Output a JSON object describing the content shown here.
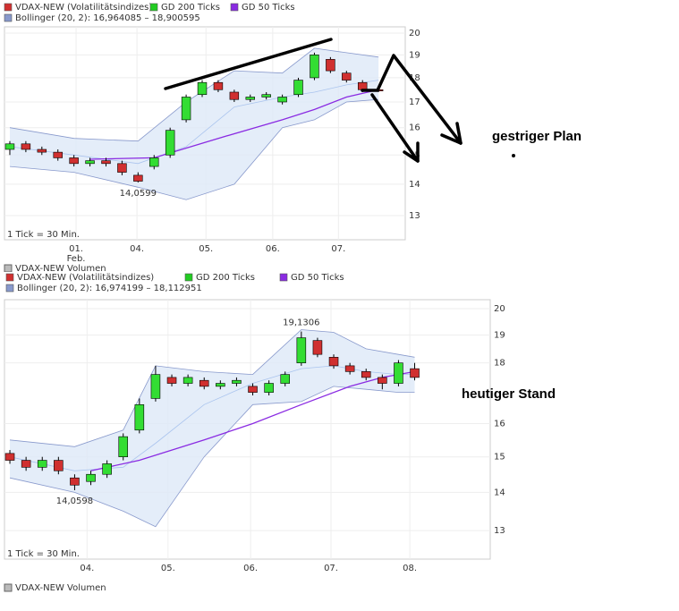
{
  "chart_data": [
    {
      "type": "candlestick",
      "log_scale": true,
      "grid": true,
      "ylim": [
        12.28,
        20.3
      ],
      "yticks": [
        20,
        19,
        18,
        17,
        16,
        15,
        14,
        13
      ],
      "xlim": [
        0,
        75
      ],
      "xticks": [
        {
          "value": 13.4,
          "label": "01."
        },
        {
          "value": 24.8,
          "label": "04."
        },
        {
          "value": 37.7,
          "label": "05."
        },
        {
          "value": 50.2,
          "label": "06."
        },
        {
          "value": 62.5,
          "label": "07."
        }
      ],
      "month_label": "Feb.",
      "scale_note": "1 Tick = 30 Min.",
      "footer": "VDAX-NEW Volumen",
      "min_label": "14,0599",
      "series": [
        {
          "name": "VDAX-NEW (Volatilitätsindizes)",
          "color": "#d03030",
          "up_color": "#33dd33",
          "x": [
            1,
            4,
            7,
            10,
            13,
            16,
            19,
            22,
            25,
            28,
            31,
            34,
            37,
            40,
            43,
            46,
            49,
            52,
            55,
            58,
            61,
            64,
            67,
            70
          ],
          "open": [
            15.2,
            15.4,
            15.2,
            15.1,
            14.9,
            14.7,
            14.8,
            14.7,
            14.3,
            14.6,
            15.0,
            16.3,
            17.3,
            17.8,
            17.4,
            17.1,
            17.2,
            17.0,
            17.3,
            18.0,
            18.8,
            18.2,
            17.8,
            17.5
          ],
          "high": [
            15.5,
            15.5,
            15.3,
            15.2,
            15.0,
            14.9,
            14.9,
            14.8,
            14.4,
            15.0,
            16.0,
            17.3,
            17.9,
            17.9,
            17.5,
            17.3,
            17.4,
            17.3,
            18.0,
            19.1,
            18.9,
            18.3,
            17.9,
            17.6
          ],
          "low": [
            15.0,
            15.1,
            15.0,
            14.8,
            14.6,
            14.6,
            14.6,
            14.3,
            14.06,
            14.5,
            14.9,
            16.2,
            17.2,
            17.4,
            17.0,
            17.0,
            17.1,
            16.9,
            17.2,
            17.9,
            18.2,
            17.8,
            17.4,
            17.4
          ],
          "close": [
            15.4,
            15.2,
            15.1,
            14.9,
            14.7,
            14.8,
            14.7,
            14.4,
            14.1,
            14.9,
            15.9,
            17.2,
            17.8,
            17.5,
            17.1,
            17.2,
            17.3,
            17.2,
            17.9,
            19.0,
            18.3,
            17.9,
            17.5,
            17.45
          ]
        },
        {
          "name": "GD 200 Ticks",
          "color": "#22cc22"
        },
        {
          "name": "GD 50 Ticks",
          "color": "#8a2be2",
          "x": [
            16,
            28,
            40,
            52,
            58,
            64,
            70
          ],
          "values": [
            14.85,
            14.9,
            15.6,
            16.3,
            16.7,
            17.2,
            17.5
          ]
        },
        {
          "name": "Bollinger (20, 2): 16,964085 – 18,900595",
          "color": "#8899cc",
          "x": [
            1,
            13,
            25,
            34,
            43,
            52,
            58,
            64,
            70
          ],
          "upper": [
            16.0,
            15.6,
            15.5,
            17.0,
            18.3,
            18.2,
            19.3,
            19.1,
            18.9
          ],
          "middle": [
            15.3,
            15.0,
            14.7,
            15.3,
            16.8,
            17.2,
            17.4,
            17.7,
            17.9
          ],
          "lower": [
            14.6,
            14.4,
            13.9,
            13.5,
            14.0,
            16.0,
            16.3,
            17.0,
            17.1
          ]
        }
      ]
    },
    {
      "type": "candlestick",
      "log_scale": true,
      "grid": true,
      "ylim": [
        12.3,
        20.35
      ],
      "yticks": [
        20,
        19,
        18,
        16,
        15,
        14,
        13
      ],
      "xlim": [
        0,
        90
      ],
      "xticks": [
        {
          "value": 15.3,
          "label": "04."
        },
        {
          "value": 30.3,
          "label": "05."
        },
        {
          "value": 45.6,
          "label": "06."
        },
        {
          "value": 60.5,
          "label": "07."
        },
        {
          "value": 75.1,
          "label": "08."
        }
      ],
      "scale_note": "1 Tick = 30 Min.",
      "footer": "VDAX-NEW Volumen",
      "min_label": "14,0598",
      "max_label": "19,1306",
      "series": [
        {
          "name": "VDAX-NEW (Volatilitätsindizes)",
          "color": "#d03030",
          "up_color": "#33dd33",
          "x": [
            1,
            4,
            7,
            10,
            13,
            16,
            19,
            22,
            25,
            28,
            31,
            34,
            37,
            40,
            43,
            46,
            49,
            52,
            55,
            58,
            61,
            64,
            67,
            70,
            73,
            76
          ],
          "open": [
            15.1,
            14.9,
            14.7,
            14.9,
            14.4,
            14.3,
            14.5,
            15.0,
            15.8,
            16.8,
            17.5,
            17.3,
            17.4,
            17.2,
            17.3,
            17.2,
            17.0,
            17.3,
            18.0,
            18.8,
            18.2,
            17.9,
            17.7,
            17.5,
            17.3,
            17.8
          ],
          "high": [
            15.2,
            15.0,
            15.0,
            15.0,
            14.5,
            14.6,
            14.9,
            15.7,
            16.8,
            17.9,
            17.6,
            17.6,
            17.5,
            17.4,
            17.5,
            17.3,
            17.4,
            17.7,
            19.13,
            18.9,
            18.3,
            18.0,
            17.8,
            17.6,
            18.1,
            18.0
          ],
          "low": [
            14.8,
            14.6,
            14.6,
            14.5,
            14.06,
            14.2,
            14.4,
            14.9,
            15.7,
            16.7,
            17.2,
            17.2,
            17.1,
            17.1,
            17.2,
            16.9,
            16.9,
            17.2,
            17.9,
            18.2,
            17.8,
            17.6,
            17.4,
            17.1,
            17.2,
            17.4
          ],
          "close": [
            14.9,
            14.7,
            14.9,
            14.6,
            14.2,
            14.5,
            14.8,
            15.6,
            16.6,
            17.6,
            17.3,
            17.5,
            17.2,
            17.3,
            17.4,
            17.0,
            17.3,
            17.6,
            18.9,
            18.3,
            17.9,
            17.7,
            17.5,
            17.3,
            18.0,
            17.5
          ]
        },
        {
          "name": "GD 200 Ticks",
          "color": "#22cc22"
        },
        {
          "name": "GD 50 Ticks",
          "color": "#8a2be2",
          "x": [
            16,
            25,
            37,
            46,
            55,
            64,
            70,
            76
          ],
          "values": [
            14.6,
            14.9,
            15.5,
            16.0,
            16.6,
            17.2,
            17.5,
            17.7
          ]
        },
        {
          "name": "Bollinger (20, 2): 16,974199 – 18,112951",
          "color": "#8899cc",
          "x": [
            1,
            13,
            22,
            28,
            37,
            46,
            55,
            61,
            67,
            73,
            76
          ],
          "upper": [
            15.5,
            15.3,
            15.8,
            17.9,
            17.7,
            17.6,
            19.2,
            19.1,
            18.5,
            18.3,
            18.2
          ],
          "middle": [
            15.0,
            14.6,
            14.7,
            15.4,
            16.6,
            17.3,
            17.8,
            17.9,
            17.7,
            17.6,
            17.6
          ],
          "lower": [
            14.4,
            14.0,
            13.5,
            13.1,
            15.0,
            16.6,
            16.7,
            17.2,
            17.1,
            17.0,
            17.0
          ]
        }
      ]
    }
  ],
  "notes": [
    "gestriger Plan",
    "heutiger Stand"
  ]
}
